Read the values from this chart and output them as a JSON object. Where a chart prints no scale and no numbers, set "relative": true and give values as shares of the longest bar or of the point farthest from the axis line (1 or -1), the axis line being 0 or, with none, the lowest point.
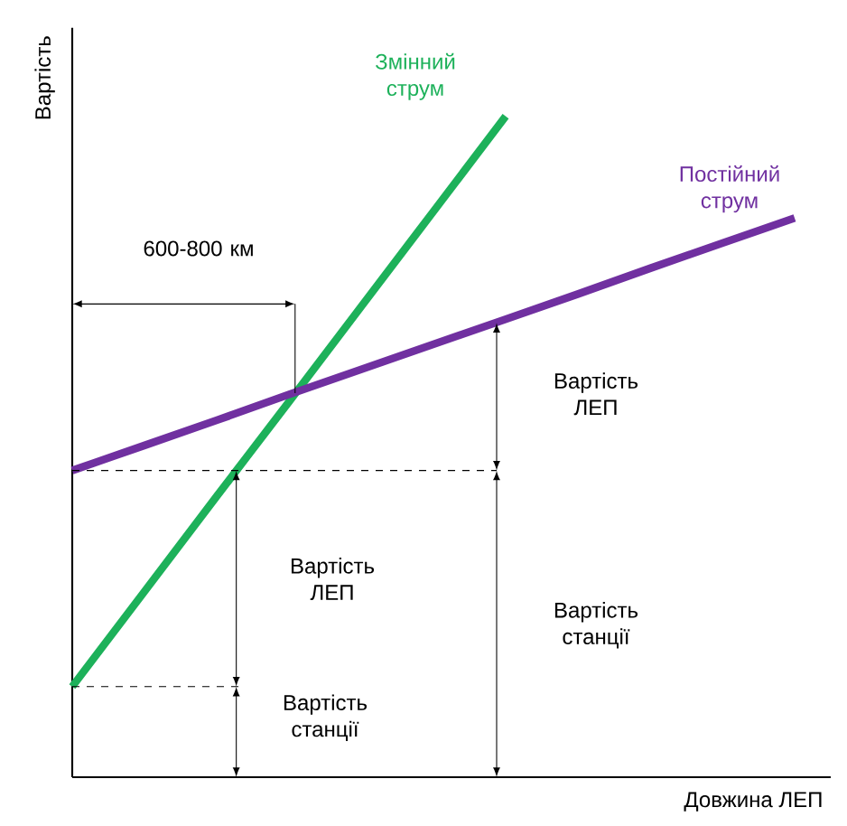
{
  "chart_data": {
    "type": "line",
    "relative": true,
    "xlabel": "Довжина ЛЕП",
    "ylabel": "Вартість",
    "categories": [
      null,
      null,
      null,
      null,
      null,
      null,
      null,
      null,
      null,
      null,
      null
    ],
    "series": [
      {
        "name": "Змінний струм",
        "color": "#1db15a",
        "values": [
          0.137,
          0.281,
          0.425,
          0.568,
          0.712,
          0.856,
          1.0,
          null,
          null,
          null,
          null
        ]
      },
      {
        "name": "Постійний струм",
        "color": "#7030a0",
        "values": [
          0.464,
          0.502,
          0.54,
          0.579,
          0.617,
          0.655,
          0.693,
          0.731,
          0.77,
          0.808,
          0.846
        ]
      }
    ],
    "annotations": [
      "600-800 км",
      "Вартість ЛЕП",
      "Вартість станції",
      "Вартість ЛЕП",
      "Вартість станції"
    ],
    "marker": "none",
    "line_style": "solid"
  }
}
